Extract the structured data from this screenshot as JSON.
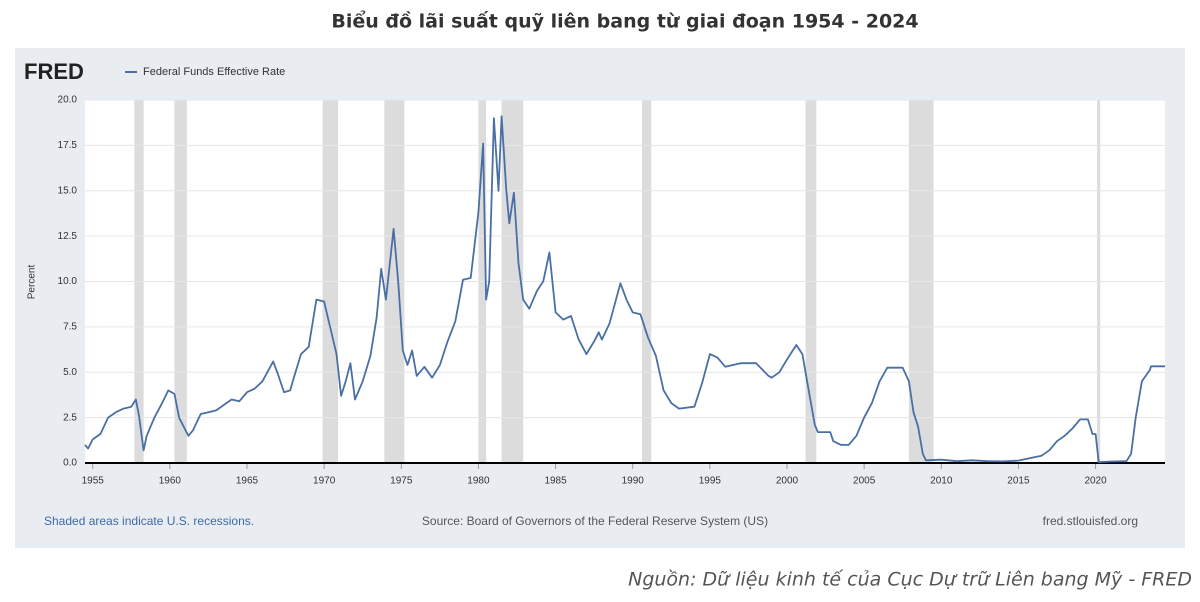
{
  "chart_data": {
    "type": "line",
    "title": "Biểu đồ lãi suất quỹ liên bang từ giai đoạn 1954 - 2024",
    "logo": "FRED",
    "ylabel": "Percent",
    "note": "Shaded areas indicate U.S. recessions.",
    "source": "Source: Board of Governors of the Federal Reserve System (US)",
    "site": "fred.stlouisfed.org",
    "caption": "Nguồn: Dữ liệu kinh tế của Cục Dự trữ Liên bang Mỹ - FRED",
    "xlim": [
      1954.5,
      2024.5
    ],
    "xticks": [
      1955,
      1960,
      1965,
      1970,
      1975,
      1980,
      1985,
      1990,
      1995,
      2000,
      2005,
      2010,
      2015,
      2020
    ],
    "ylim": [
      0,
      20
    ],
    "yticks": [
      {
        "value": 0,
        "label": "0.0"
      },
      2.5,
      {
        "value": 5,
        "label": "5.0"
      },
      7.5,
      {
        "value": 10,
        "label": "10.0"
      },
      12.5,
      {
        "value": 15,
        "label": "15.0"
      },
      17.5,
      {
        "value": 20,
        "label": "20.0"
      }
    ],
    "grid": true,
    "recessions": [
      [
        1957.7,
        1958.3
      ],
      [
        1960.3,
        1961.1
      ],
      [
        1969.9,
        1970.9
      ],
      [
        1973.9,
        1975.2
      ],
      [
        1980.0,
        1980.5
      ],
      [
        1981.5,
        1982.9
      ],
      [
        1990.6,
        1991.2
      ],
      [
        2001.2,
        2001.9
      ],
      [
        2007.9,
        2009.5
      ],
      [
        2020.1,
        2020.3
      ]
    ],
    "x": [
      1954.5,
      1954.7,
      1955,
      1955.5,
      1956,
      1956.5,
      1957,
      1957.5,
      1957.8,
      1958.0,
      1958.3,
      1958.5,
      1959,
      1959.5,
      1959.9,
      1960.3,
      1960.6,
      1960.9,
      1961.2,
      1961.5,
      1962,
      1962.5,
      1963,
      1963.5,
      1964,
      1964.5,
      1965,
      1965.5,
      1966,
      1966.7,
      1967,
      1967.4,
      1967.8,
      1968,
      1968.5,
      1969,
      1969.5,
      1970,
      1970.3,
      1970.8,
      1971.1,
      1971.4,
      1971.7,
      1972,
      1972.5,
      1973,
      1973.4,
      1973.7,
      1974,
      1974.5,
      1974.8,
      1975.1,
      1975.4,
      1975.7,
      1976,
      1976.5,
      1977,
      1977.5,
      1978,
      1978.5,
      1979,
      1979.5,
      1980.0,
      1980.3,
      1980.5,
      1980.7,
      1981.0,
      1981.3,
      1981.5,
      1981.8,
      1982.0,
      1982.3,
      1982.6,
      1982.9,
      1983.3,
      1983.8,
      1984.2,
      1984.6,
      1985,
      1985.5,
      1986,
      1986.5,
      1987,
      1987.5,
      1987.8,
      1988,
      1988.5,
      1989.2,
      1989.6,
      1990,
      1990.5,
      1991,
      1991.5,
      1992,
      1992.5,
      1993,
      1994,
      1994.5,
      1995,
      1995.5,
      1996,
      1997,
      1998,
      1998.8,
      1999,
      1999.5,
      2000,
      2000.6,
      2001,
      2001.3,
      2001.8,
      2002,
      2002.8,
      2003,
      2003.5,
      2004,
      2004.5,
      2005,
      2005.5,
      2006,
      2006.5,
      2007.5,
      2007.9,
      2008.2,
      2008.5,
      2008.8,
      2009,
      2010,
      2011,
      2012,
      2013,
      2014,
      2015,
      2015.9,
      2016.5,
      2017,
      2017.5,
      2018,
      2018.5,
      2019,
      2019.5,
      2019.8,
      2020.0,
      2020.2,
      2021,
      2022,
      2022.3,
      2022.6,
      2023,
      2023.5,
      2023.6,
      2024.5
    ],
    "series": [
      {
        "name": "Federal Funds Effective Rate",
        "color": "#4a6fa5",
        "values": [
          1.0,
          0.8,
          1.3,
          1.6,
          2.5,
          2.8,
          3.0,
          3.1,
          3.5,
          2.6,
          0.7,
          1.5,
          2.5,
          3.3,
          4.0,
          3.8,
          2.5,
          2.0,
          1.5,
          1.8,
          2.7,
          2.8,
          2.9,
          3.2,
          3.5,
          3.4,
          3.9,
          4.1,
          4.5,
          5.6,
          4.9,
          3.9,
          4.0,
          4.6,
          6.0,
          6.4,
          9.0,
          8.9,
          7.8,
          6.0,
          3.7,
          4.5,
          5.5,
          3.5,
          4.5,
          5.9,
          8.0,
          10.7,
          9.0,
          12.9,
          10.0,
          6.2,
          5.4,
          6.2,
          4.8,
          5.3,
          4.7,
          5.4,
          6.7,
          7.8,
          10.1,
          10.2,
          13.8,
          17.6,
          9.0,
          10.0,
          19.0,
          15.0,
          19.1,
          15.1,
          13.2,
          14.9,
          11.0,
          9.0,
          8.5,
          9.5,
          10.0,
          11.6,
          8.3,
          7.9,
          8.1,
          6.8,
          6.0,
          6.7,
          7.2,
          6.8,
          7.7,
          9.9,
          9.0,
          8.3,
          8.2,
          6.9,
          5.9,
          4.0,
          3.3,
          3.0,
          3.1,
          4.4,
          6.0,
          5.8,
          5.3,
          5.5,
          5.5,
          4.8,
          4.7,
          5.0,
          5.7,
          6.5,
          6.0,
          4.5,
          2.1,
          1.7,
          1.7,
          1.2,
          1.0,
          1.0,
          1.5,
          2.5,
          3.3,
          4.5,
          5.25,
          5.25,
          4.5,
          2.8,
          2.0,
          0.5,
          0.15,
          0.18,
          0.1,
          0.15,
          0.1,
          0.09,
          0.13,
          0.3,
          0.4,
          0.7,
          1.2,
          1.5,
          1.9,
          2.4,
          2.4,
          1.6,
          1.6,
          0.05,
          0.08,
          0.1,
          0.5,
          2.5,
          4.5,
          5.1,
          5.33,
          5.33
        ]
      }
    ]
  }
}
